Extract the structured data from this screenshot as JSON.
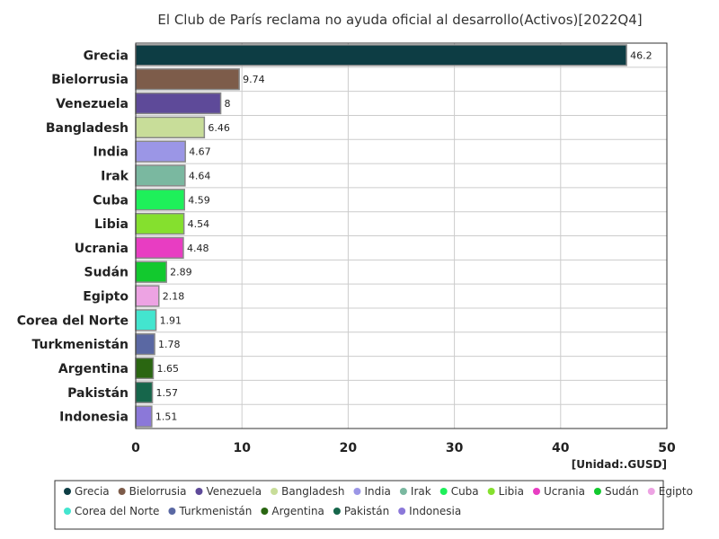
{
  "chart_data": {
    "type": "bar",
    "orientation": "horizontal",
    "title": "El Club de París reclama no ayuda oficial al desarrollo(Activos)[2022Q4]",
    "unit_label": "[Unidad:.GUSD]",
    "xlim": [
      0,
      50
    ],
    "x_ticks": [
      0,
      10,
      20,
      30,
      40,
      50
    ],
    "grid": true,
    "legend_position": "bottom",
    "categories": [
      "Grecia",
      "Bielorrusia",
      "Venezuela",
      "Bangladesh",
      "India",
      "Irak",
      "Cuba",
      "Libia",
      "Ucrania",
      "Sudán",
      "Egipto",
      "Corea del Norte",
      "Turkmenistán",
      "Argentina",
      "Pakistán",
      "Indonesia"
    ],
    "values": [
      46.2,
      9.74,
      8,
      6.46,
      4.67,
      4.64,
      4.59,
      4.54,
      4.48,
      2.89,
      2.18,
      1.91,
      1.78,
      1.65,
      1.57,
      1.51
    ],
    "value_labels": [
      "46.2",
      "9.74",
      "8",
      "6.46",
      "4.67",
      "4.64",
      "4.59",
      "4.54",
      "4.48",
      "2.89",
      "2.18",
      "1.91",
      "1.78",
      "1.65",
      "1.57",
      "1.51"
    ],
    "colors": [
      "#0d3d44",
      "#7d5c4a",
      "#5e4a99",
      "#c8dd99",
      "#9b96e6",
      "#7ab8a0",
      "#1ef05a",
      "#85e02e",
      "#e83dc2",
      "#12c92e",
      "#eda3e3",
      "#43e5cf",
      "#5a68a3",
      "#2a6611",
      "#16664b",
      "#8b78d9"
    ]
  }
}
